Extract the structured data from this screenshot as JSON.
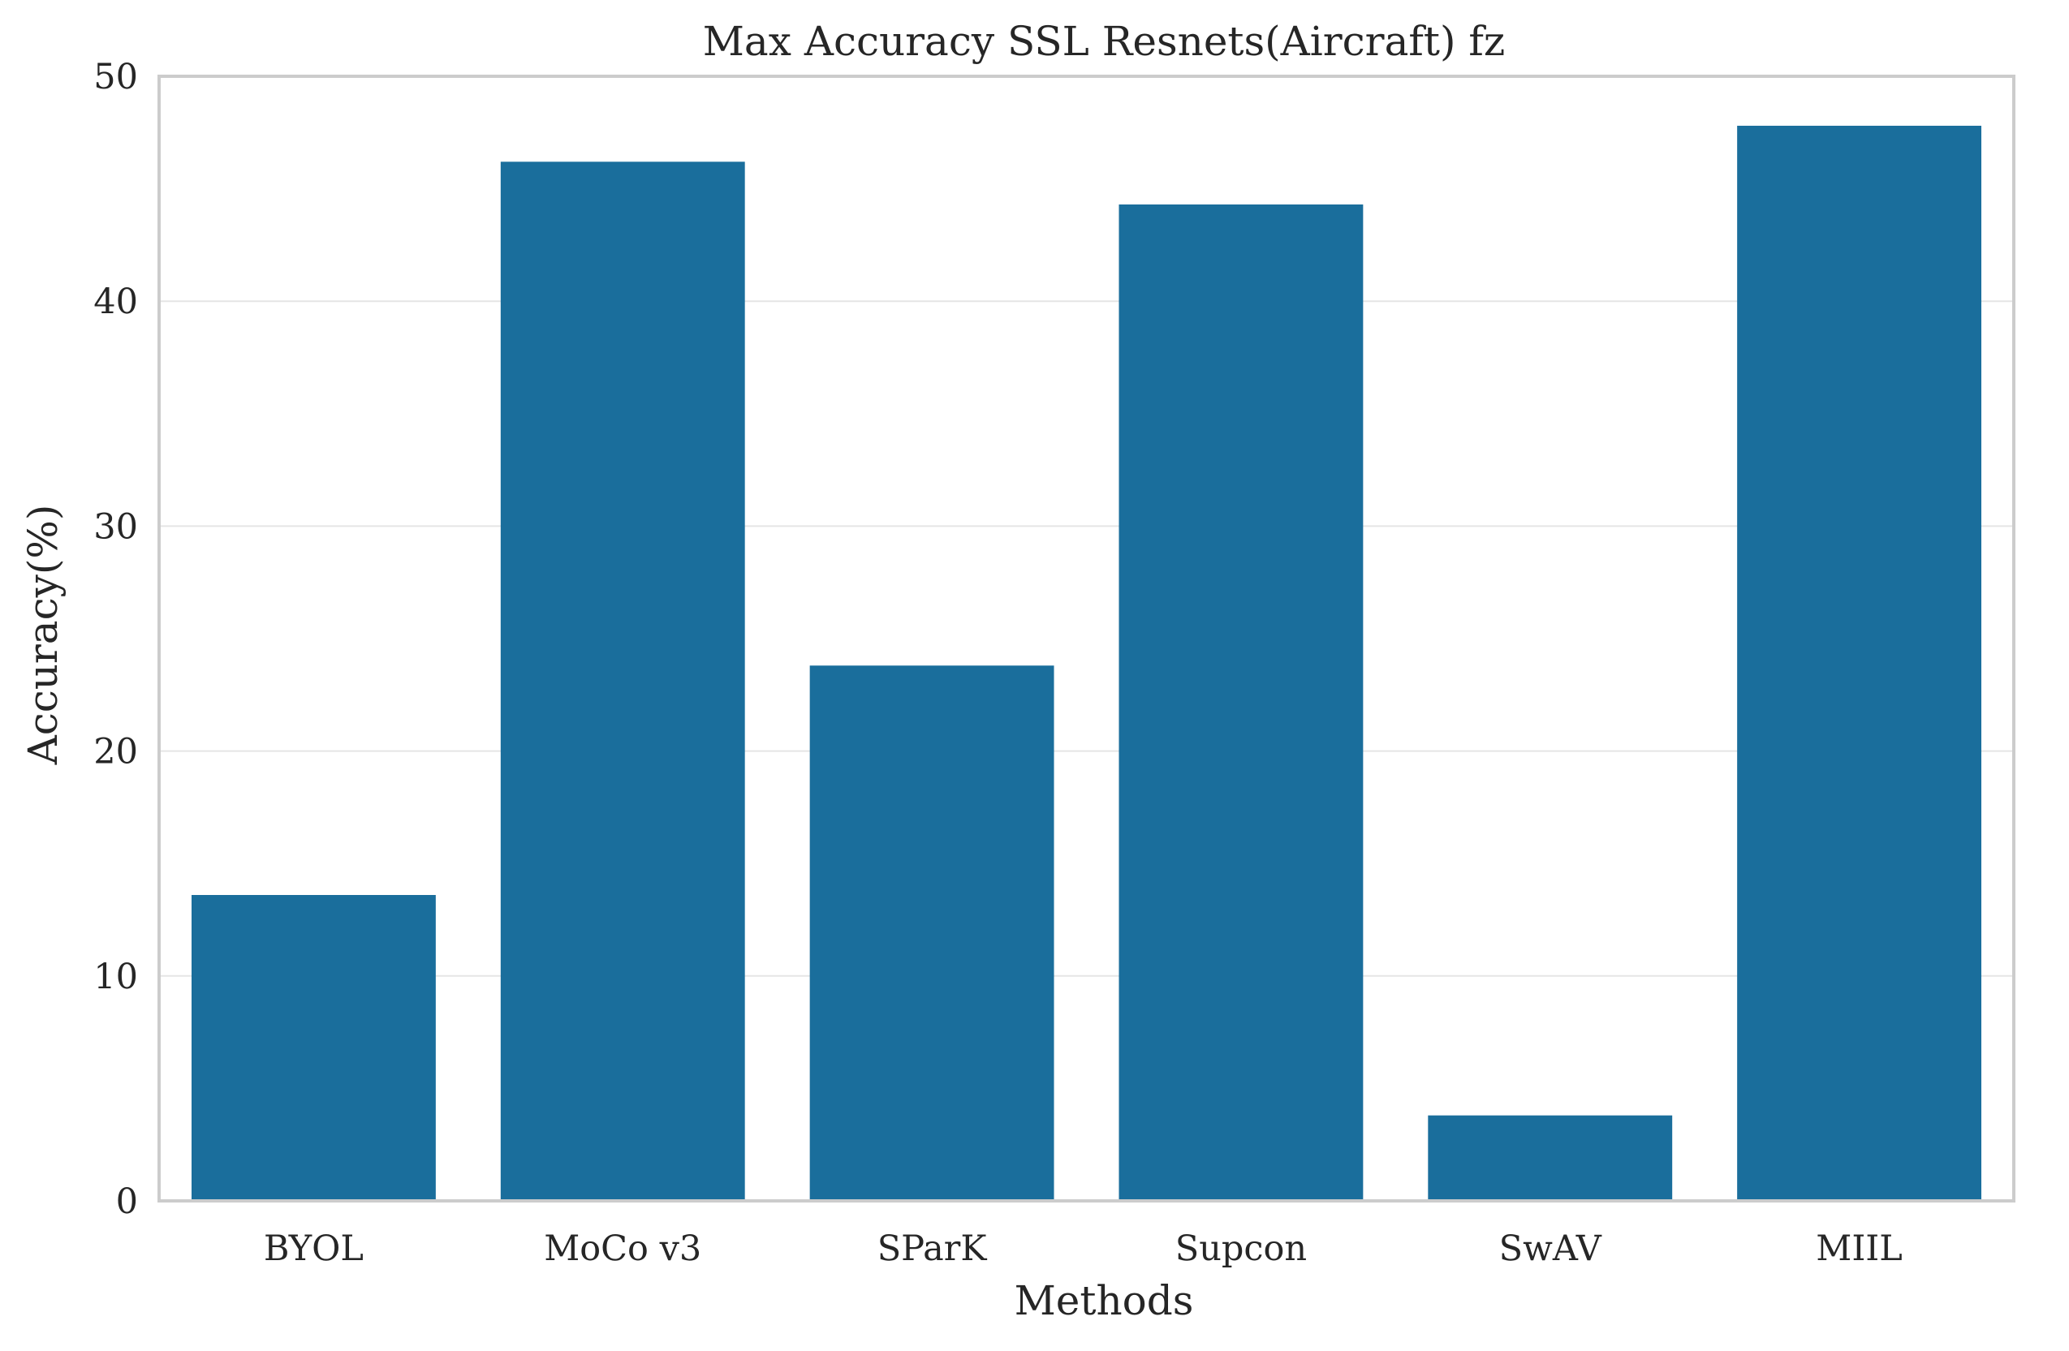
{
  "chart_data": {
    "type": "bar",
    "title": "Max Accuracy SSL Resnets(Aircraft) fz",
    "xlabel": "Methods",
    "ylabel": "Accuracy(%)",
    "categories": [
      "BYOL",
      "MoCo v3",
      "SParK",
      "Supcon",
      "SwAV",
      "MIIL"
    ],
    "values": [
      13.6,
      46.2,
      23.8,
      44.3,
      3.8,
      47.8
    ],
    "ylim": [
      0,
      50
    ],
    "yticks": [
      "0",
      "10",
      "20",
      "30",
      "40",
      "50"
    ],
    "grid": "horizontal",
    "bar_color": "#1a6e9c"
  }
}
